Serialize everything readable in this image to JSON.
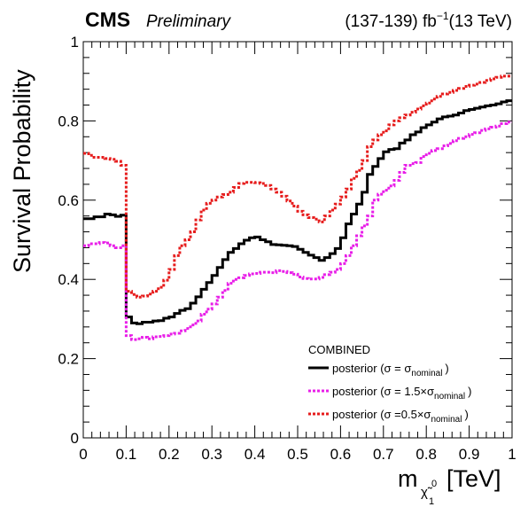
{
  "header": {
    "experiment": "CMS",
    "status": "Preliminary",
    "lumi": "(137-139) fb",
    "lumi_exp": "−1",
    "energy": "(13 TeV)"
  },
  "chart_data": {
    "type": "line",
    "step": true,
    "ylabel": "Survival Probability",
    "xlabel_parts": {
      "m": "m",
      "sub": "χ̃",
      "sup": "0",
      "subsub": "1",
      "unit": "[TeV]"
    },
    "xlim": [
      0,
      1
    ],
    "ylim": [
      0,
      1
    ],
    "xticks": [
      0,
      0.1,
      0.2,
      0.3,
      0.4,
      0.5,
      0.6,
      0.7,
      0.8,
      0.9,
      1
    ],
    "xtick_labels": [
      "0",
      "0.1",
      "0.2",
      "0.3",
      "0.4",
      "0.5",
      "0.6",
      "0.7",
      "0.8",
      "0.9",
      "1"
    ],
    "yticks": [
      0,
      0.2,
      0.4,
      0.6,
      0.8,
      1
    ],
    "ytick_labels": [
      "0",
      "0.2",
      "0.4",
      "0.6",
      "0.8",
      "1"
    ],
    "legend": {
      "title": "COMBINED",
      "entries": [
        {
          "prefix": "posterior (σ = σ",
          "sub": "nominal",
          "suffix": ")"
        },
        {
          "prefix": "posterior (σ = 1.5×σ",
          "sub": "nominal",
          "suffix": ")"
        },
        {
          "prefix": "posterior (σ =0.5×σ",
          "sub": "nominal",
          "suffix": ")"
        }
      ]
    },
    "series": [
      {
        "color": "#000000",
        "dashed": false,
        "x": [
          0,
          0.0125,
          0.025,
          0.0375,
          0.05,
          0.0625,
          0.075,
          0.0875,
          0.1,
          0.1125,
          0.125,
          0.1375,
          0.15,
          0.1625,
          0.175,
          0.1875,
          0.2,
          0.2125,
          0.225,
          0.2375,
          0.25,
          0.2625,
          0.275,
          0.2875,
          0.3,
          0.3125,
          0.325,
          0.3375,
          0.35,
          0.3625,
          0.375,
          0.3875,
          0.4,
          0.4125,
          0.425,
          0.4375,
          0.45,
          0.4625,
          0.475,
          0.4875,
          0.5,
          0.5125,
          0.525,
          0.5375,
          0.55,
          0.5625,
          0.575,
          0.5875,
          0.6,
          0.6125,
          0.625,
          0.6375,
          0.65,
          0.6625,
          0.675,
          0.6875,
          0.7,
          0.7125,
          0.725,
          0.7375,
          0.75,
          0.7625,
          0.775,
          0.7875,
          0.8,
          0.8125,
          0.825,
          0.8375,
          0.85,
          0.8625,
          0.875,
          0.8875,
          0.9,
          0.9125,
          0.925,
          0.9375,
          0.95,
          0.9625,
          0.975,
          0.9875
        ],
        "values": [
          0.553,
          0.553,
          0.558,
          0.558,
          0.565,
          0.563,
          0.559,
          0.562,
          0.305,
          0.29,
          0.288,
          0.292,
          0.292,
          0.295,
          0.296,
          0.302,
          0.305,
          0.314,
          0.322,
          0.326,
          0.34,
          0.356,
          0.375,
          0.392,
          0.41,
          0.43,
          0.45,
          0.468,
          0.478,
          0.49,
          0.499,
          0.505,
          0.507,
          0.5,
          0.495,
          0.488,
          0.487,
          0.486,
          0.485,
          0.483,
          0.476,
          0.468,
          0.461,
          0.455,
          0.448,
          0.455,
          0.465,
          0.478,
          0.505,
          0.54,
          0.565,
          0.59,
          0.62,
          0.665,
          0.685,
          0.705,
          0.722,
          0.728,
          0.73,
          0.744,
          0.752,
          0.765,
          0.772,
          0.783,
          0.79,
          0.797,
          0.805,
          0.81,
          0.812,
          0.815,
          0.82,
          0.826,
          0.829,
          0.832,
          0.835,
          0.838,
          0.84,
          0.843,
          0.848,
          0.851
        ]
      },
      {
        "color": "#e81ee8",
        "dashed": true,
        "x": [
          0,
          0.0125,
          0.025,
          0.0375,
          0.05,
          0.0625,
          0.075,
          0.0875,
          0.1,
          0.1125,
          0.125,
          0.1375,
          0.15,
          0.1625,
          0.175,
          0.1875,
          0.2,
          0.2125,
          0.225,
          0.2375,
          0.25,
          0.2625,
          0.275,
          0.2875,
          0.3,
          0.3125,
          0.325,
          0.3375,
          0.35,
          0.3625,
          0.375,
          0.3875,
          0.4,
          0.4125,
          0.425,
          0.4375,
          0.45,
          0.4625,
          0.475,
          0.4875,
          0.5,
          0.5125,
          0.525,
          0.5375,
          0.55,
          0.5625,
          0.575,
          0.5875,
          0.6,
          0.6125,
          0.625,
          0.6375,
          0.65,
          0.6625,
          0.675,
          0.6875,
          0.7,
          0.7125,
          0.725,
          0.7375,
          0.75,
          0.7625,
          0.775,
          0.7875,
          0.8,
          0.8125,
          0.825,
          0.8375,
          0.85,
          0.8625,
          0.875,
          0.8875,
          0.9,
          0.9125,
          0.925,
          0.9375,
          0.95,
          0.9625,
          0.975,
          0.9875
        ],
        "values": [
          0.485,
          0.49,
          0.49,
          0.493,
          0.492,
          0.485,
          0.48,
          0.485,
          0.258,
          0.248,
          0.25,
          0.254,
          0.25,
          0.255,
          0.256,
          0.258,
          0.262,
          0.264,
          0.27,
          0.276,
          0.285,
          0.295,
          0.312,
          0.325,
          0.338,
          0.355,
          0.372,
          0.39,
          0.4,
          0.404,
          0.41,
          0.414,
          0.415,
          0.418,
          0.418,
          0.417,
          0.422,
          0.42,
          0.417,
          0.413,
          0.406,
          0.402,
          0.401,
          0.401,
          0.405,
          0.412,
          0.418,
          0.425,
          0.44,
          0.46,
          0.485,
          0.51,
          0.535,
          0.56,
          0.6,
          0.615,
          0.625,
          0.636,
          0.65,
          0.67,
          0.688,
          0.692,
          0.695,
          0.71,
          0.718,
          0.725,
          0.73,
          0.737,
          0.743,
          0.75,
          0.756,
          0.76,
          0.766,
          0.77,
          0.776,
          0.78,
          0.784,
          0.787,
          0.793,
          0.797
        ]
      },
      {
        "color": "#e61c1c",
        "dashed": true,
        "x": [
          0,
          0.0125,
          0.025,
          0.0375,
          0.05,
          0.0625,
          0.075,
          0.0875,
          0.1,
          0.1125,
          0.125,
          0.1375,
          0.15,
          0.1625,
          0.175,
          0.1875,
          0.2,
          0.2125,
          0.225,
          0.2375,
          0.25,
          0.2625,
          0.275,
          0.2875,
          0.3,
          0.3125,
          0.325,
          0.3375,
          0.35,
          0.3625,
          0.375,
          0.3875,
          0.4,
          0.4125,
          0.425,
          0.4375,
          0.45,
          0.4625,
          0.475,
          0.4875,
          0.5,
          0.5125,
          0.525,
          0.5375,
          0.55,
          0.5625,
          0.575,
          0.5875,
          0.6,
          0.6125,
          0.625,
          0.6375,
          0.65,
          0.6625,
          0.675,
          0.6875,
          0.7,
          0.7125,
          0.725,
          0.7375,
          0.75,
          0.7625,
          0.775,
          0.7875,
          0.8,
          0.8125,
          0.825,
          0.8375,
          0.85,
          0.8625,
          0.875,
          0.8875,
          0.9,
          0.9125,
          0.925,
          0.9375,
          0.95,
          0.9625,
          0.975,
          0.9875
        ],
        "values": [
          0.718,
          0.713,
          0.708,
          0.708,
          0.705,
          0.703,
          0.698,
          0.688,
          0.37,
          0.362,
          0.355,
          0.358,
          0.363,
          0.37,
          0.38,
          0.398,
          0.425,
          0.46,
          0.485,
          0.5,
          0.52,
          0.55,
          0.575,
          0.592,
          0.6,
          0.608,
          0.614,
          0.62,
          0.632,
          0.642,
          0.645,
          0.645,
          0.644,
          0.642,
          0.637,
          0.628,
          0.62,
          0.61,
          0.598,
          0.585,
          0.572,
          0.563,
          0.556,
          0.552,
          0.545,
          0.56,
          0.575,
          0.59,
          0.608,
          0.628,
          0.655,
          0.675,
          0.7,
          0.735,
          0.752,
          0.765,
          0.775,
          0.79,
          0.8,
          0.808,
          0.815,
          0.822,
          0.83,
          0.838,
          0.845,
          0.855,
          0.862,
          0.868,
          0.872,
          0.877,
          0.882,
          0.887,
          0.89,
          0.893,
          0.897,
          0.902,
          0.906,
          0.91,
          0.913,
          0.913
        ]
      }
    ]
  }
}
